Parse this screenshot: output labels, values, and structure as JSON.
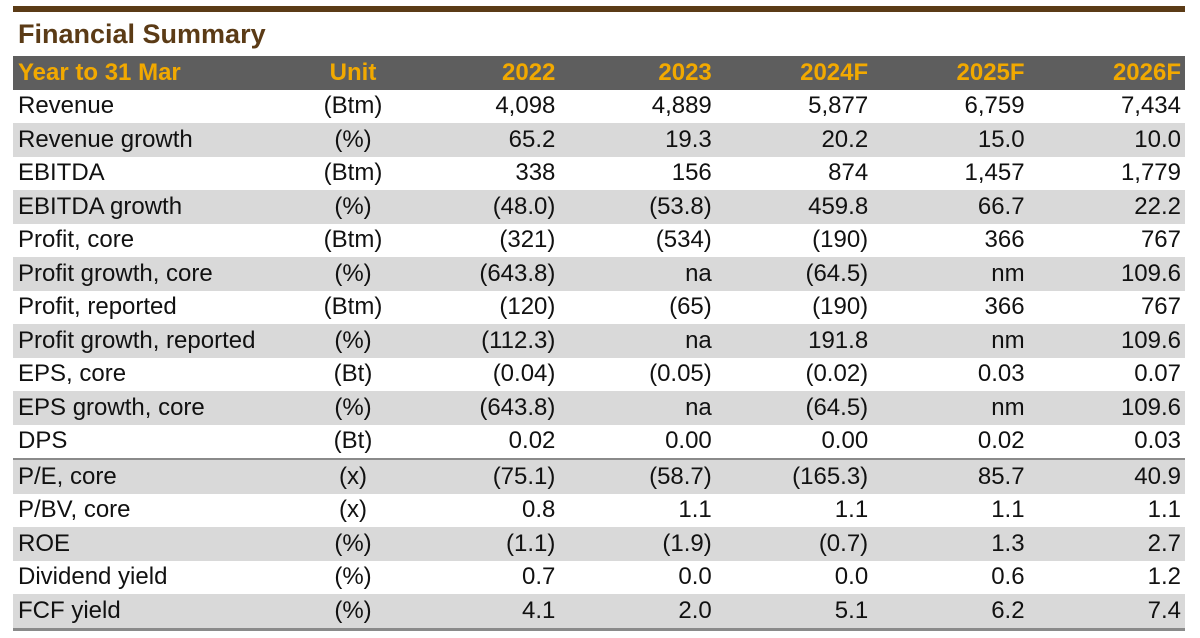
{
  "title": "Financial Summary",
  "header": {
    "label": "Year to 31 Mar",
    "unit": "Unit",
    "years": [
      "2022",
      "2023",
      "2024F",
      "2025F",
      "2026F"
    ]
  },
  "rows": [
    {
      "label": "Revenue",
      "unit": "(Btm)",
      "values": [
        "4,098",
        "4,889",
        "5,877",
        "6,759",
        "7,434"
      ]
    },
    {
      "label": "Revenue growth",
      "unit": "(%)",
      "values": [
        "65.2",
        "19.3",
        "20.2",
        "15.0",
        "10.0"
      ]
    },
    {
      "label": "EBITDA",
      "unit": "(Btm)",
      "values": [
        "338",
        "156",
        "874",
        "1,457",
        "1,779"
      ]
    },
    {
      "label": "EBITDA growth",
      "unit": "(%)",
      "values": [
        "(48.0)",
        "(53.8)",
        "459.8",
        "66.7",
        "22.2"
      ]
    },
    {
      "label": "Profit, core",
      "unit": "(Btm)",
      "values": [
        "(321)",
        "(534)",
        "(190)",
        "366",
        "767"
      ]
    },
    {
      "label": "Profit growth, core",
      "unit": "(%)",
      "values": [
        "(643.8)",
        "na",
        "(64.5)",
        "nm",
        "109.6"
      ]
    },
    {
      "label": "Profit, reported",
      "unit": "(Btm)",
      "values": [
        "(120)",
        "(65)",
        "(190)",
        "366",
        "767"
      ]
    },
    {
      "label": "Profit growth, reported",
      "unit": "(%)",
      "values": [
        "(112.3)",
        "na",
        "191.8",
        "nm",
        "109.6"
      ]
    },
    {
      "label": "EPS, core",
      "unit": "(Bt)",
      "values": [
        "(0.04)",
        "(0.05)",
        "(0.02)",
        "0.03",
        "0.07"
      ]
    },
    {
      "label": "EPS growth, core",
      "unit": "(%)",
      "values": [
        "(643.8)",
        "na",
        "(64.5)",
        "nm",
        "109.6"
      ]
    },
    {
      "label": "DPS",
      "unit": "(Bt)",
      "values": [
        "0.02",
        "0.00",
        "0.00",
        "0.02",
        "0.03"
      ]
    },
    {
      "label": "P/E, core",
      "unit": "(x)",
      "values": [
        "(75.1)",
        "(58.7)",
        "(165.3)",
        "85.7",
        "40.9"
      ]
    },
    {
      "label": "P/BV, core",
      "unit": "(x)",
      "values": [
        "0.8",
        "1.1",
        "1.1",
        "1.1",
        "1.1"
      ]
    },
    {
      "label": "ROE",
      "unit": "(%)",
      "values": [
        "(1.1)",
        "(1.9)",
        "(0.7)",
        "1.3",
        "2.7"
      ]
    },
    {
      "label": "Dividend yield",
      "unit": "(%)",
      "values": [
        "0.7",
        "0.0",
        "0.0",
        "0.6",
        "1.2"
      ]
    },
    {
      "label": "FCF yield",
      "unit": "(%)",
      "values": [
        "4.1",
        "2.0",
        "5.1",
        "6.2",
        "7.4"
      ]
    }
  ]
}
